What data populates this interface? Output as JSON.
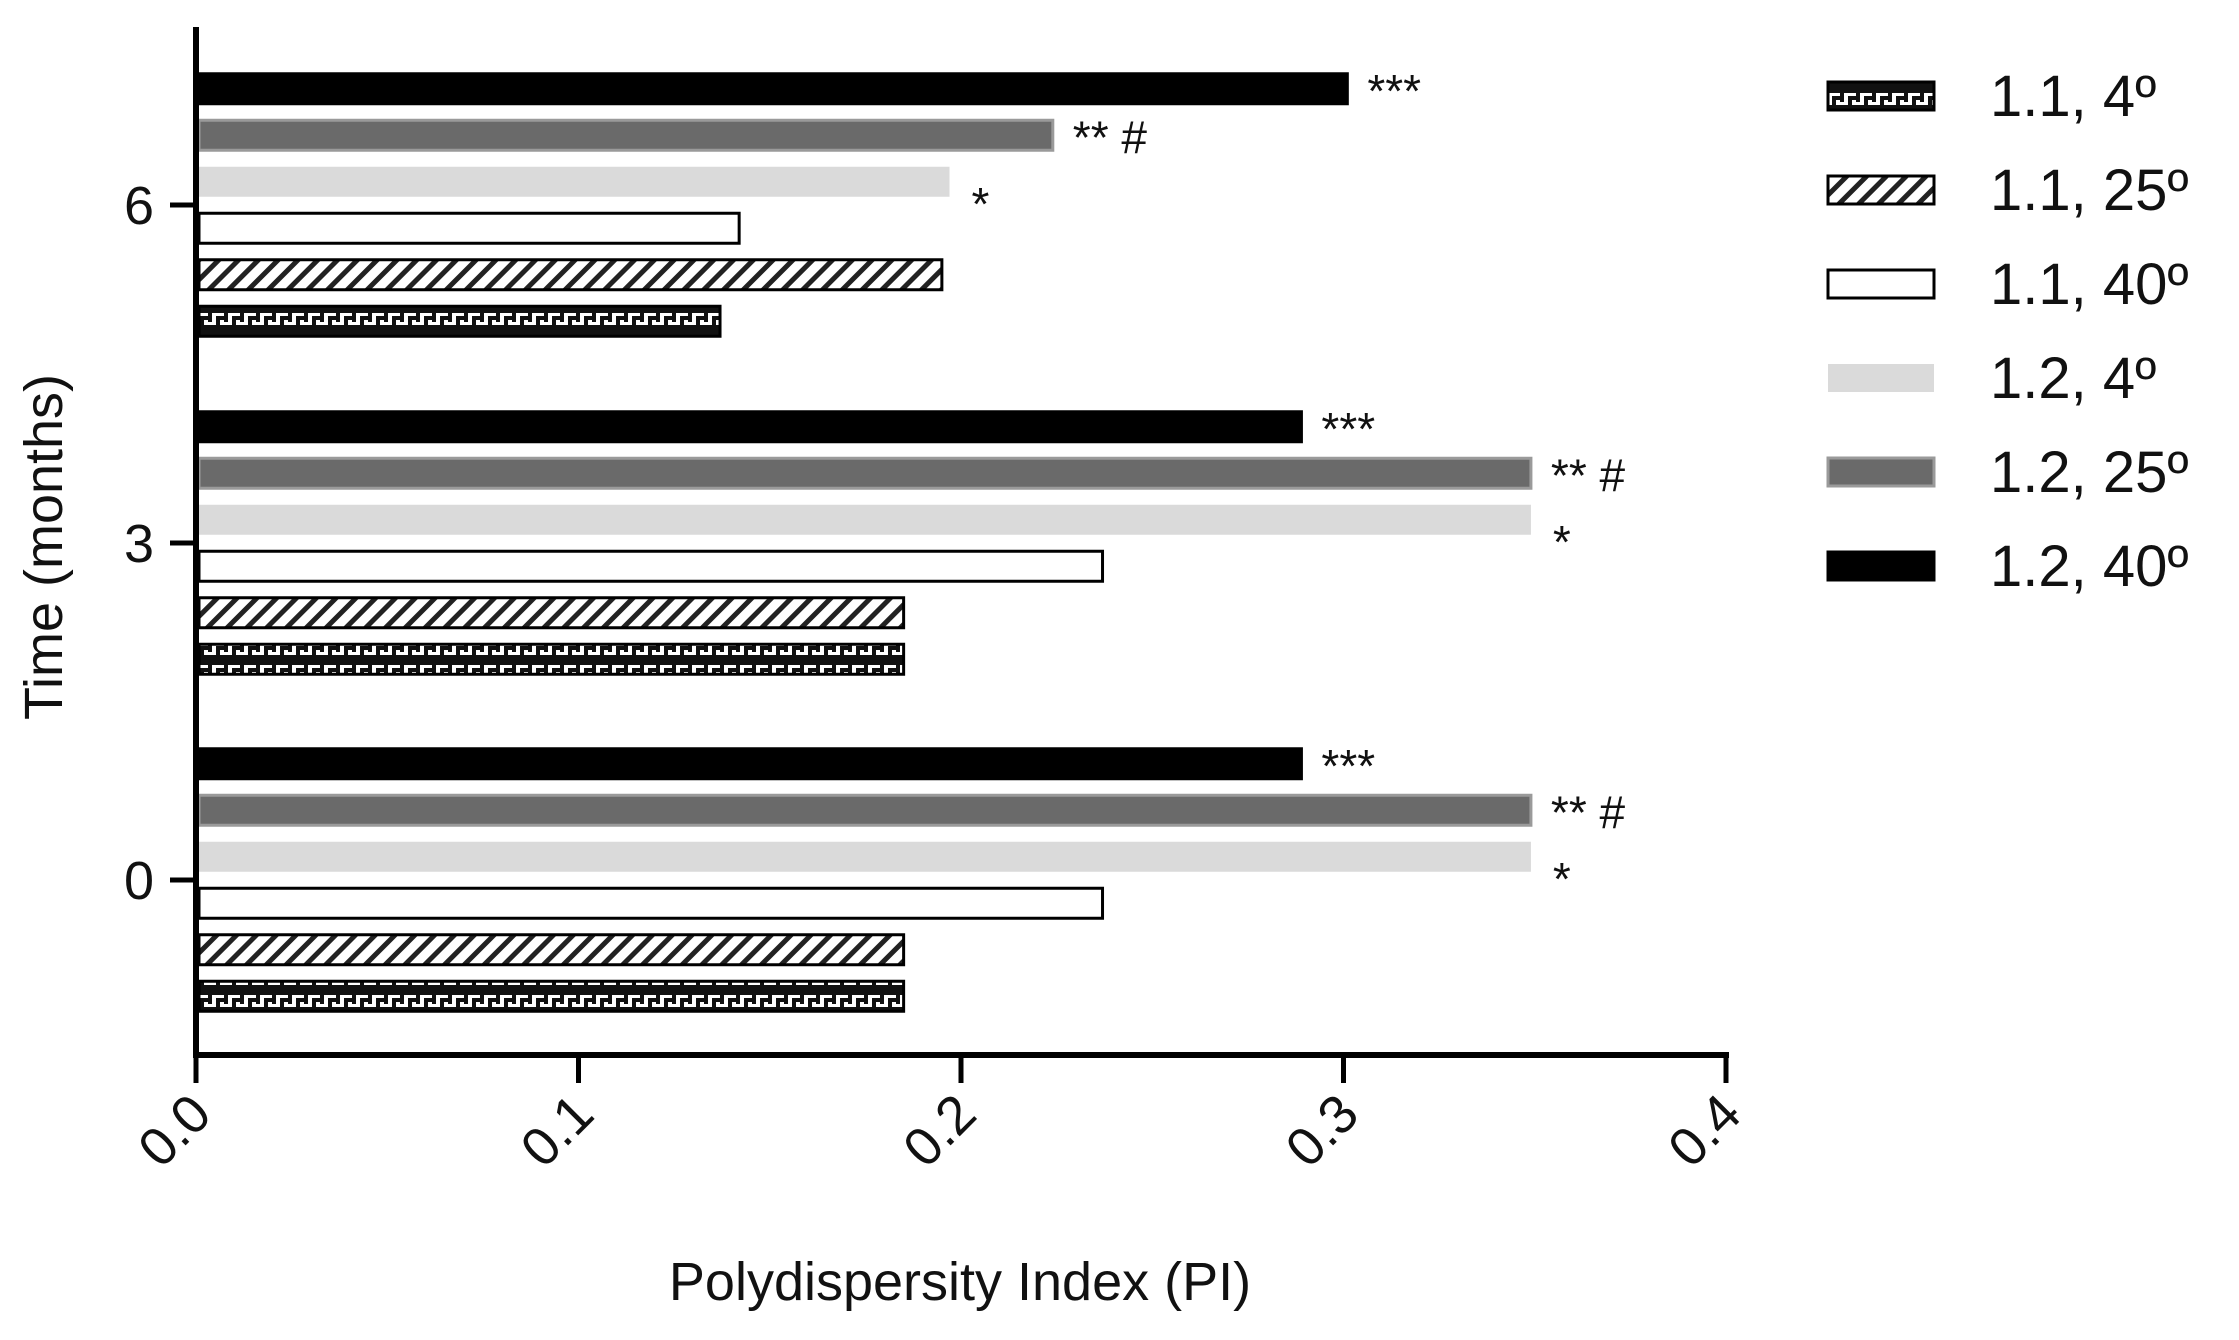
{
  "chart_data": {
    "type": "bar",
    "orientation": "horizontal",
    "xlabel": "Polydispersity Index  (PI)",
    "ylabel": "Time (months)",
    "xlim": [
      0.0,
      0.4
    ],
    "x_ticks": [
      "0.0",
      "0.1",
      "0.2",
      "0.3",
      "0.4"
    ],
    "categories": [
      "0",
      "3",
      "6"
    ],
    "grid": false,
    "legend_position": "right",
    "series": [
      {
        "name": "1.1, 4º",
        "fill": "brick-pattern",
        "color": "#111111",
        "values": [
          0.185,
          0.185,
          0.137
        ],
        "annotations": [
          "",
          "",
          ""
        ]
      },
      {
        "name": "1.1, 25º",
        "fill": "hatch-pattern",
        "color": "#222222",
        "values": [
          0.185,
          0.185,
          0.195
        ],
        "annotations": [
          "",
          "",
          ""
        ]
      },
      {
        "name": "1.1, 40º",
        "fill": "white",
        "color": "#ffffff",
        "values": [
          0.237,
          0.237,
          0.142
        ],
        "annotations": [
          "",
          "",
          ""
        ]
      },
      {
        "name": "1.2, 4º",
        "fill": "light-gray",
        "color": "#dadada",
        "values": [
          0.349,
          0.349,
          0.197
        ],
        "annotations": [
          "*",
          "*",
          "*"
        ]
      },
      {
        "name": "1.2, 25º",
        "fill": "dark-gray",
        "color": "#6a6a6a",
        "values": [
          0.349,
          0.349,
          0.224
        ],
        "annotations": [
          "** #",
          "** #",
          "** #"
        ]
      },
      {
        "name": "1.2, 40º",
        "fill": "black",
        "color": "#000000",
        "values": [
          0.289,
          0.289,
          0.301
        ],
        "annotations": [
          "***",
          "***",
          "***"
        ]
      }
    ]
  }
}
